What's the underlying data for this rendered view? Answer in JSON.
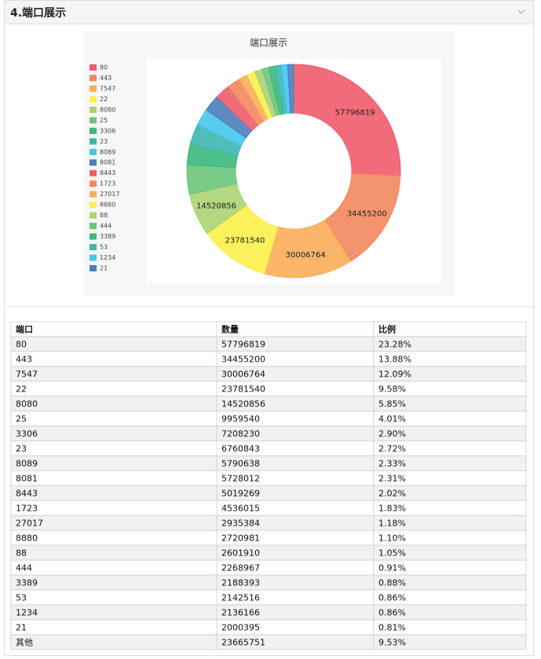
{
  "header": {
    "title": "4.端口展示"
  },
  "chart_data": {
    "type": "pie",
    "donut": true,
    "title": "端口展示",
    "categories": [
      "80",
      "443",
      "7547",
      "22",
      "8080",
      "25",
      "3306",
      "23",
      "8089",
      "8081",
      "8443",
      "1723",
      "27017",
      "8880",
      "88",
      "444",
      "3389",
      "53",
      "1234",
      "21"
    ],
    "values": [
      57796819,
      34455200,
      30006764,
      23781540,
      14520856,
      9959540,
      7208230,
      6760843,
      5790638,
      5728012,
      5019269,
      4536015,
      2935384,
      2720981,
      2601910,
      2268967,
      2188393,
      2142516,
      2136166,
      2000395
    ],
    "colors": [
      "#f15b6c",
      "#f3885e",
      "#f9ad59",
      "#fbf04a",
      "#acd373",
      "#6cc57a",
      "#3ab87b",
      "#3db7b0",
      "#45c5ee",
      "#4a7ebb",
      "#f15b6c",
      "#f3885e",
      "#f9ad59",
      "#fbf04a",
      "#acd373",
      "#6cc57a",
      "#3ab87b",
      "#3db7b0",
      "#45c5ee",
      "#4a7ebb"
    ],
    "legend": "left"
  },
  "table": {
    "header": [
      "端口",
      "数量",
      "比例"
    ],
    "rows": [
      [
        "80",
        "57796819",
        "23.28%"
      ],
      [
        "443",
        "34455200",
        "13.88%"
      ],
      [
        "7547",
        "30006764",
        "12.09%"
      ],
      [
        "22",
        "23781540",
        "9.58%"
      ],
      [
        "8080",
        "14520856",
        "5.85%"
      ],
      [
        "25",
        "9959540",
        "4.01%"
      ],
      [
        "3306",
        "7208230",
        "2.90%"
      ],
      [
        "23",
        "6760843",
        "2.72%"
      ],
      [
        "8089",
        "5790638",
        "2.33%"
      ],
      [
        "8081",
        "5728012",
        "2.31%"
      ],
      [
        "8443",
        "5019269",
        "2.02%"
      ],
      [
        "1723",
        "4536015",
        "1.83%"
      ],
      [
        "27017",
        "2935384",
        "1.18%"
      ],
      [
        "8880",
        "2720981",
        "1.10%"
      ],
      [
        "88",
        "2601910",
        "1.05%"
      ],
      [
        "444",
        "2268967",
        "0.91%"
      ],
      [
        "3389",
        "2188393",
        "0.88%"
      ],
      [
        "53",
        "2142516",
        "0.86%"
      ],
      [
        "1234",
        "2136166",
        "0.86%"
      ],
      [
        "21",
        "2000395",
        "0.81%"
      ],
      [
        "其他",
        "23665751",
        "9.53%"
      ]
    ]
  }
}
